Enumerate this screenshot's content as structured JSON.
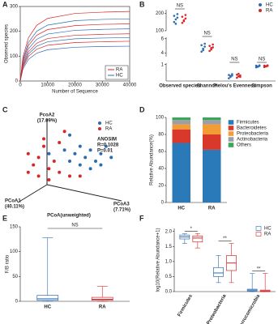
{
  "chart_data": [
    {
      "type": "line",
      "panel": "A",
      "xlabel": "Number of Sequence",
      "ylabel": "Observed species",
      "x": [
        0,
        1000,
        3000,
        6000,
        10000,
        20000,
        30000,
        40000
      ],
      "xlim": [
        0,
        40000
      ],
      "xticks": [
        0,
        10000,
        20000,
        30000,
        40000
      ],
      "ylim": [
        0,
        300
      ],
      "yticks": [
        0,
        100,
        200,
        300
      ],
      "series": [
        {
          "name": "RA",
          "color": "#d62728",
          "values": [
            [
              0,
              98,
              174,
              224,
              252,
              272,
              277,
              280
            ],
            [
              0,
              81,
              143,
              184,
              207,
              223,
              228,
              230
            ],
            [
              0,
              67,
              118,
              152,
              171,
              184,
              188,
              190
            ],
            [
              0,
              56,
              99,
              128,
              144,
              155,
              158,
              160
            ]
          ]
        },
        {
          "name": "HC",
          "color": "#2b6cb0",
          "values": [
            [
              0,
              88,
              155,
              200,
              225,
              243,
              248,
              250
            ],
            [
              0,
              74,
              130,
              168,
              189,
              204,
              208,
              210
            ],
            [
              0,
              61,
              109,
              140,
              158,
              170,
              173,
              175
            ],
            [
              0,
              49,
              87,
              112,
              126,
              136,
              139,
              140
            ]
          ]
        }
      ]
    },
    {
      "type": "dot",
      "panel": "B",
      "categories": [
        "Observed species",
        "Shannon",
        "Pielou's Evenness",
        "Simpson"
      ],
      "category_segment": [
        0,
        1,
        2,
        2
      ],
      "segments": [
        {
          "ylim": [
            100,
            220
          ],
          "yticks": [
            100,
            200
          ]
        },
        {
          "ylim": [
            3.5,
            6.2
          ],
          "yticks": [
            4,
            6
          ]
        },
        {
          "ylim": [
            0.4,
            1.05
          ],
          "yticks": [
            1
          ]
        }
      ],
      "annotations": [
        "NS",
        "NS",
        "NS",
        "NS"
      ],
      "series": [
        {
          "name": "HC",
          "color": "#2b6cb0",
          "values": [
            [
              150,
              165,
              175,
              185,
              140,
              195
            ],
            [
              4.2,
              4.6,
              4.9,
              5.1,
              4.4,
              5.3
            ],
            [
              0.5,
              0.55,
              0.6,
              0.62,
              0.58,
              0.65
            ],
            [
              0.9,
              0.93,
              0.95,
              0.96,
              0.92,
              0.97
            ]
          ]
        },
        {
          "name": "RA",
          "color": "#d62728",
          "values": [
            [
              145,
              160,
              170,
              180,
              155,
              190
            ],
            [
              4.3,
              4.5,
              4.8,
              5.0,
              4.7,
              5.2
            ],
            [
              0.52,
              0.57,
              0.6,
              0.63,
              0.66,
              0.55
            ],
            [
              0.91,
              0.94,
              0.95,
              0.96,
              0.93,
              0.97
            ]
          ]
        }
      ]
    },
    {
      "type": "scatter",
      "panel": "C",
      "xlabel": "PCoA(unweighted)",
      "pc2_label": [
        "PcoA2",
        "(17.09%)"
      ],
      "pc1_label": [
        "PCoA1",
        "(40.11%)"
      ],
      "pc3_label": [
        "PCoA3",
        "(7.71%)"
      ],
      "stats": [
        "ANOSIM",
        "R=0.1028",
        "P=0.01"
      ],
      "xlim": [
        0,
        10
      ],
      "ylim": [
        0,
        10
      ],
      "series": [
        {
          "name": "HC",
          "color": "#2b6cb0",
          "x": [
            6,
            7,
            8,
            6.5,
            7.5,
            5.5,
            8.5,
            9,
            6,
            7,
            5,
            4.5,
            8,
            3,
            5
          ],
          "y": [
            7,
            6.5,
            6,
            5.5,
            5,
            6,
            7,
            5.5,
            4.5,
            4,
            5,
            6.5,
            4.5,
            6,
            8.5
          ]
        },
        {
          "name": "RA",
          "color": "#d62728",
          "x": [
            1,
            2,
            1.5,
            2.5,
            3,
            3.5,
            2,
            4,
            1,
            2.5,
            4,
            3,
            5,
            6,
            4.5
          ],
          "y": [
            6,
            5.5,
            4.5,
            7,
            4,
            5,
            3,
            3.5,
            3.5,
            8,
            7.5,
            2.5,
            3,
            3,
            9
          ]
        }
      ]
    },
    {
      "type": "bar",
      "panel": "D",
      "ylabel": "Relative Abundance(%)",
      "categories": [
        "HC",
        "RA"
      ],
      "ylim": [
        0,
        100
      ],
      "yticks": [
        0,
        20,
        40,
        60,
        80,
        100
      ],
      "series": [
        {
          "name": "Firmicutes",
          "color": "#2a7ab9",
          "values": [
            70,
            62
          ]
        },
        {
          "name": "Bacteroidetes",
          "color": "#d9392b",
          "values": [
            16,
            18
          ]
        },
        {
          "name": "Proteobacteria",
          "color": "#f39c35",
          "values": [
            6,
            12
          ]
        },
        {
          "name": "Actinobacteria",
          "color": "#9aa0a6",
          "values": [
            5,
            5
          ]
        },
        {
          "name": "Others",
          "color": "#3aa757",
          "values": [
            3,
            3
          ]
        }
      ]
    },
    {
      "type": "box",
      "panel": "E",
      "ylabel": "F/B ratio",
      "categories": [
        "HC",
        "RA"
      ],
      "colors": [
        "#2b6cb0",
        "#d62728"
      ],
      "ylim": [
        0,
        150
      ],
      "yticks": [
        0,
        50,
        100,
        150
      ],
      "annotation": "NS",
      "boxes": [
        {
          "min": 0,
          "q1": 2,
          "median": 5,
          "q3": 12,
          "max": 128
        },
        {
          "min": 0,
          "q1": 2,
          "median": 4,
          "q3": 8,
          "max": 30
        }
      ]
    },
    {
      "type": "box",
      "panel": "F",
      "ylabel": "log10(Relative Abundance+1)",
      "categories": [
        "Firmicutes",
        "Proteobacteria",
        "Verrucomicrobia"
      ],
      "ylim": [
        0,
        2.1
      ],
      "yticks": [
        {
          "value": 0,
          "label": "0.0"
        },
        0.5,
        {
          "value": 1,
          "label": "1.0"
        },
        1.5,
        {
          "value": 2,
          "label": "2.0"
        }
      ],
      "annotations": [
        "*",
        "**",
        "**"
      ],
      "series": [
        {
          "name": "HC",
          "color": "#2b6cb0",
          "boxes": [
            {
              "min": 1.6,
              "q1": 1.75,
              "median": 1.82,
              "q3": 1.88,
              "max": 1.92
            },
            {
              "min": 0.3,
              "q1": 0.5,
              "median": 0.62,
              "q3": 0.8,
              "max": 1.2
            },
            {
              "min": 0,
              "q1": 0.02,
              "median": 0.05,
              "q3": 0.08,
              "max": 0.6
            }
          ]
        },
        {
          "name": "RA",
          "color": "#d62728",
          "boxes": [
            {
              "min": 1.45,
              "q1": 1.65,
              "median": 1.78,
              "q3": 1.85,
              "max": 1.93
            },
            {
              "min": 0.3,
              "q1": 0.7,
              "median": 0.95,
              "q3": 1.2,
              "max": 1.6
            },
            {
              "min": 0,
              "q1": 0,
              "median": 0.02,
              "q3": 0.05,
              "max": 0.6
            }
          ]
        }
      ]
    }
  ]
}
